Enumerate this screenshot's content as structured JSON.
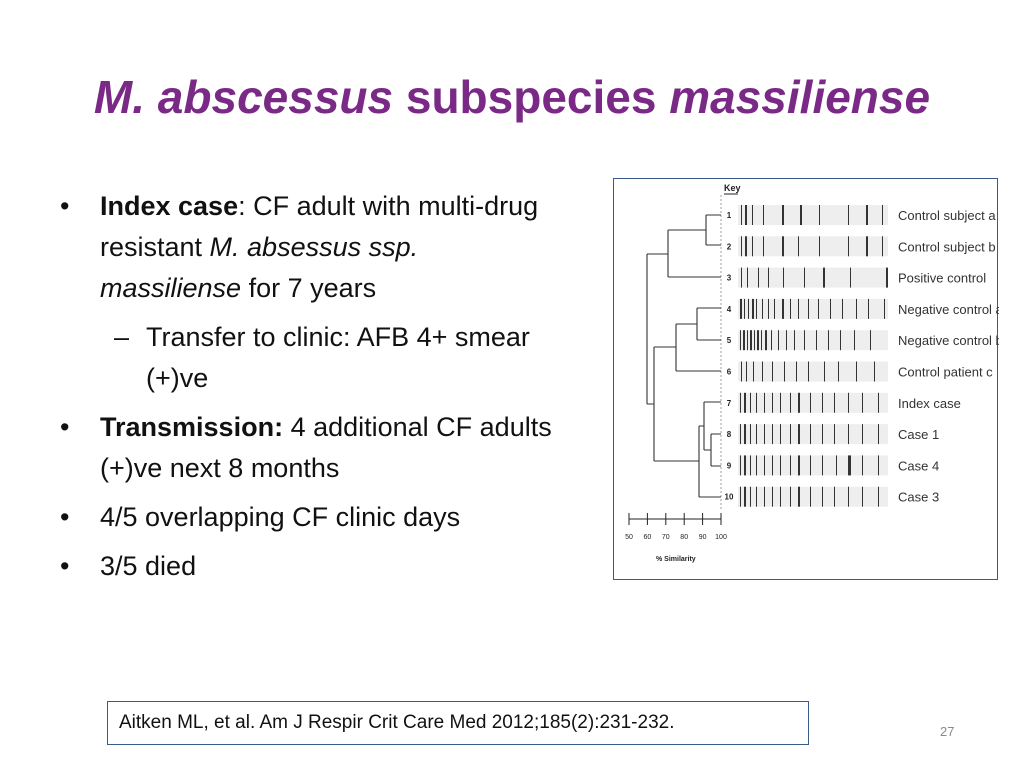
{
  "title": {
    "part1": "M. abscessus",
    "part2": " subspecies ",
    "part3": "massiliense"
  },
  "bullets": {
    "b1": {
      "bold": "Index case",
      "text1": ": CF adult with multi-drug resistant ",
      "italic": "M. absessus ssp. massiliense",
      "text2": " for 7 years"
    },
    "b1_sub": "Transfer to clinic: AFB 4+ smear (+)ve",
    "b2": {
      "bold": "Transmission:",
      "text": " 4 additional CF adults (+)ve next 8 months"
    },
    "b3": "4/5 overlapping CF clinic days",
    "b4": "3/5 died",
    "bullet_char": "•",
    "dash_char": "–"
  },
  "figure": {
    "key_title": "Key",
    "scale_ticks": [
      "50",
      "60",
      "70",
      "80",
      "90",
      "100"
    ],
    "scale_label": "% Similarity",
    "rows": [
      {
        "num": "1",
        "label": "Control subject a"
      },
      {
        "num": "2",
        "label": "Control subject b"
      },
      {
        "num": "3",
        "label": "Positive control"
      },
      {
        "num": "4",
        "label": "Negative control a"
      },
      {
        "num": "5",
        "label": "Negative control b"
      },
      {
        "num": "6",
        "label": "Control patient c"
      },
      {
        "num": "7",
        "label": "Index case"
      },
      {
        "num": "8",
        "label": "Case 1"
      },
      {
        "num": "9",
        "label": "Case 4"
      },
      {
        "num": "10",
        "label": "Case 3"
      }
    ]
  },
  "citation": "Aitken ML, et al. Am J Respir Crit Care Med 2012;185(2):231-232.",
  "page_number": "27"
}
